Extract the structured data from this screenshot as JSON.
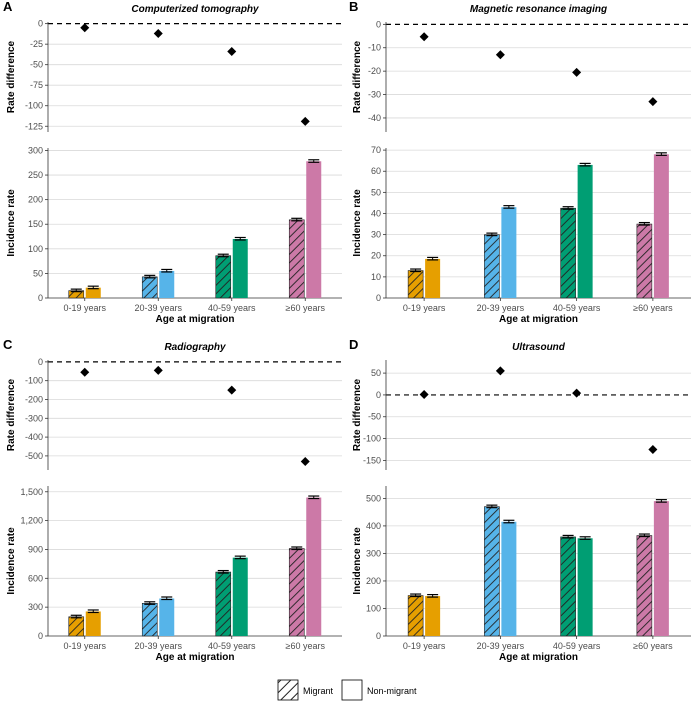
{
  "colors": {
    "age_0_19": "#E69F00",
    "age_20_39": "#56B4E9",
    "age_40_59": "#009E73",
    "age_60_plus": "#CC79A7",
    "grid": "#d9d9d9",
    "marker": "#000000"
  },
  "legend": {
    "migrant_label": "Migrant",
    "nonmigrant_label": "Non-migrant"
  },
  "chart_data": [
    {
      "letter": "A",
      "title": "Computerized tomography",
      "type": "scatter+bar",
      "categories": [
        "0-19 years",
        "20-39 years",
        "40-59 years",
        "≥60 years"
      ],
      "xlabel": "Age at migration",
      "rate_difference": {
        "ylabel": "Rate difference",
        "ylim": [
          -132,
          2
        ],
        "ticks": [
          0,
          -25,
          -50,
          -75,
          -100,
          -125
        ],
        "tick_labels": [
          "0",
          "-25",
          "-50",
          "-75",
          "-100",
          "-125"
        ],
        "values": [
          -5,
          -12,
          -34,
          -119
        ]
      },
      "incidence": {
        "ylabel": "Incidence rate",
        "ylim": [
          0,
          305
        ],
        "ticks": [
          0,
          50,
          100,
          150,
          200,
          250,
          300
        ],
        "tick_labels": [
          "0",
          "50",
          "100",
          "150",
          "200",
          "250",
          "300"
        ],
        "series": [
          {
            "name": "Migrant",
            "values": [
              15,
              43,
              86,
              159
            ]
          },
          {
            "name": "Non-migrant",
            "values": [
              21,
              55,
              120,
              278
            ]
          }
        ]
      }
    },
    {
      "letter": "B",
      "title": "Magnetic resonance imaging",
      "type": "scatter+bar",
      "categories": [
        "0-19 years",
        "20-39 years",
        "40-59 years",
        "≥60 years"
      ],
      "xlabel": "Age at migration",
      "rate_difference": {
        "ylabel": "Rate difference",
        "ylim": [
          -46,
          1
        ],
        "ticks": [
          0,
          -10,
          -20,
          -30,
          -40
        ],
        "tick_labels": [
          "0",
          "-10",
          "-20",
          "-30",
          "-40"
        ],
        "values": [
          -5.3,
          -13,
          -20.5,
          -33
        ]
      },
      "incidence": {
        "ylabel": "Incidence rate",
        "ylim": [
          0,
          71
        ],
        "ticks": [
          0,
          10,
          20,
          30,
          40,
          50,
          60,
          70
        ],
        "tick_labels": [
          "0",
          "10",
          "20",
          "30",
          "40",
          "50",
          "60",
          "70"
        ],
        "series": [
          {
            "name": "Migrant",
            "values": [
              13,
              30,
              42.5,
              35
            ]
          },
          {
            "name": "Non-migrant",
            "values": [
              18.5,
              43,
              63,
              68
            ]
          }
        ]
      }
    },
    {
      "letter": "C",
      "title": "Radiography",
      "type": "scatter+bar",
      "categories": [
        "0-19 years",
        "20-39 years",
        "40-59 years",
        "≥60 years"
      ],
      "xlabel": "Age at migration",
      "rate_difference": {
        "ylabel": "Rate difference",
        "ylim": [
          -575,
          10
        ],
        "ticks": [
          0,
          -100,
          -200,
          -300,
          -400,
          -500
        ],
        "tick_labels": [
          "0",
          "-100",
          "-200",
          "-300",
          "-400",
          "-500"
        ],
        "values": [
          -55,
          -45,
          -150,
          -530
        ]
      },
      "incidence": {
        "ylabel": "Incidence rate",
        "ylim": [
          0,
          1560
        ],
        "ticks": [
          0,
          300,
          600,
          900,
          1200,
          1500
        ],
        "tick_labels": [
          "0",
          "300",
          "600",
          "900",
          "1,200",
          "1,500"
        ],
        "series": [
          {
            "name": "Migrant",
            "values": [
              200,
              340,
              665,
              910
            ]
          },
          {
            "name": "Non-migrant",
            "values": [
              255,
              390,
              815,
              1440
            ]
          }
        ]
      }
    },
    {
      "letter": "D",
      "title": "Ultrasound",
      "type": "scatter+bar",
      "categories": [
        "0-19 years",
        "20-39 years",
        "40-59 years",
        "≥60 years"
      ],
      "xlabel": "Age at migration",
      "rate_difference": {
        "ylabel": "Rate difference",
        "ylim": [
          -172,
          80
        ],
        "ticks": [
          50,
          0,
          -50,
          -100,
          -150
        ],
        "tick_labels": [
          "50",
          "0",
          "-50",
          "-100",
          "-150"
        ],
        "values": [
          1,
          55,
          4,
          -125
        ]
      },
      "incidence": {
        "ylabel": "Incidence rate",
        "ylim": [
          0,
          545
        ],
        "ticks": [
          0,
          100,
          200,
          300,
          400,
          500
        ],
        "tick_labels": [
          "0",
          "100",
          "200",
          "300",
          "400",
          "500"
        ],
        "series": [
          {
            "name": "Migrant",
            "values": [
              147,
              470,
              360,
              365
            ]
          },
          {
            "name": "Non-migrant",
            "values": [
              145,
              415,
              355,
              490
            ]
          }
        ]
      }
    }
  ]
}
